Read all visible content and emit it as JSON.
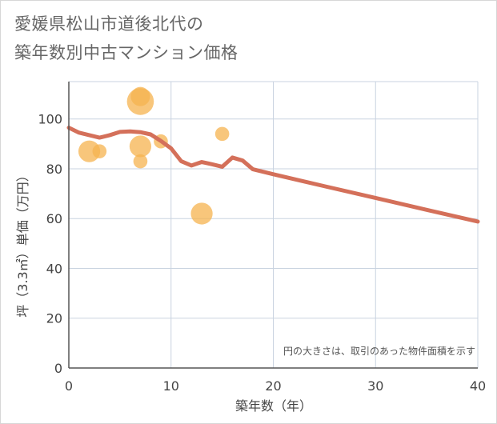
{
  "title_lines": [
    "愛媛県松山市道後北代の",
    "築年数別中古マンション価格"
  ],
  "chart_data": {
    "type": "scatter",
    "xlabel": "築年数（年）",
    "ylabel": "坪（3.3㎡）単価（万円）",
    "xlim": [
      0,
      40
    ],
    "ylim": [
      0,
      115
    ],
    "x_ticks": [
      0,
      10,
      20,
      30,
      40
    ],
    "y_ticks": [
      0,
      20,
      40,
      60,
      80,
      100
    ],
    "grid": true,
    "note": "円の大きさは、取引のあった物件面積を示す",
    "colors": {
      "bubble": "#f5b34f",
      "line": "#d4705a",
      "grid": "#c9d3e0",
      "axis": "#555555"
    },
    "bubbles": [
      {
        "x": 2,
        "y": 87,
        "size": 3
      },
      {
        "x": 3,
        "y": 87,
        "size": 1.5
      },
      {
        "x": 7,
        "y": 107,
        "size": 4
      },
      {
        "x": 7,
        "y": 109,
        "size": 2.5
      },
      {
        "x": 7,
        "y": 89,
        "size": 3
      },
      {
        "x": 7,
        "y": 83,
        "size": 1.5
      },
      {
        "x": 9,
        "y": 91,
        "size": 1.5
      },
      {
        "x": 13,
        "y": 62,
        "size": 3
      },
      {
        "x": 15,
        "y": 94,
        "size": 1.5
      }
    ],
    "series": [
      {
        "x": [
          0,
          1,
          2,
          3,
          4,
          5,
          6,
          7,
          8,
          9,
          10,
          11,
          12,
          13,
          14,
          15,
          16,
          17,
          18,
          19,
          20,
          25,
          30,
          35,
          40
        ],
        "y": [
          96.5,
          94.5,
          93.5,
          92.5,
          93.5,
          94.8,
          95.0,
          94.7,
          93.8,
          91.2,
          88.2,
          83.0,
          81.3,
          82.7,
          81.8,
          80.8,
          84.5,
          83.3,
          79.8,
          78.8,
          77.8,
          73.0,
          68.3,
          63.5,
          58.8
        ]
      }
    ]
  }
}
